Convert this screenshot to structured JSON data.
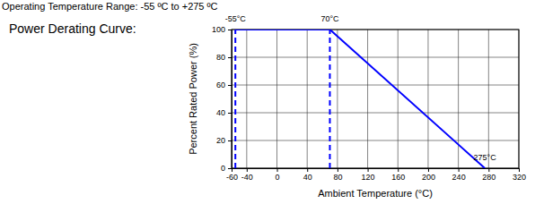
{
  "chart_data": {
    "type": "line",
    "subtitle": "Operating Temperature Range: -55 ºC to +275 ºC",
    "title": "Power Derating Curve:",
    "x_label": "Ambient Temperature (°C)",
    "y_label": "Percent Rated Power (%)",
    "x": [
      -55,
      70,
      275
    ],
    "values": [
      100,
      100,
      0
    ],
    "color": "#0000ff",
    "reference_lines": [
      -55,
      70
    ],
    "annotations": [
      {
        "text": "-55°C",
        "x": -55,
        "y": 100
      },
      {
        "text": "70°C",
        "x": 70,
        "y": 100
      },
      {
        "text": "275°C",
        "x": 275,
        "y": 0
      }
    ],
    "xlim": [
      -60,
      320
    ],
    "xticks": [
      -60,
      -40,
      0,
      40,
      80,
      120,
      160,
      200,
      240,
      280,
      320
    ],
    "ylim": [
      0,
      100
    ],
    "yticks": [
      0,
      20,
      40,
      60,
      80,
      100
    ],
    "grid": true
  }
}
